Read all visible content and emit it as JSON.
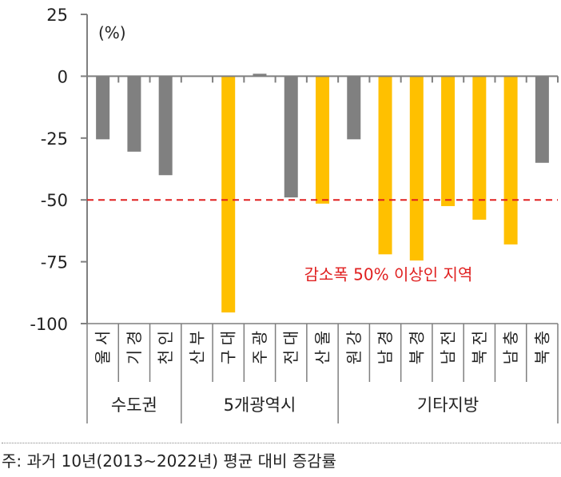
{
  "chart_data": {
    "type": "bar",
    "unit_label": "(%)",
    "ylim": [
      -100,
      25
    ],
    "yticks": [
      25,
      0,
      -25,
      -50,
      -75,
      -100
    ],
    "ytick_labels": [
      "25",
      "0",
      "-25",
      "-50",
      "-75",
      "-100"
    ],
    "grid": false,
    "categories": [
      "서울",
      "경기",
      "인천",
      "부산",
      "대구",
      "광주",
      "대전",
      "울산",
      "강원",
      "경남",
      "경북",
      "전남",
      "전북",
      "충남",
      "충북"
    ],
    "values": [
      -25.5,
      -30.5,
      -40,
      0,
      -95.5,
      1,
      -49,
      -51.5,
      -25.5,
      -72,
      -74.5,
      -52.5,
      -58,
      -68,
      -35
    ],
    "highlight": [
      false,
      false,
      false,
      false,
      true,
      false,
      false,
      true,
      false,
      true,
      true,
      true,
      true,
      true,
      false
    ],
    "colors": {
      "normal": "#808080",
      "highlight": "#FFC000",
      "reference": "#E02020"
    },
    "groups": [
      {
        "label": "수도권",
        "start": 0,
        "end": 2
      },
      {
        "label": "5개광역시",
        "start": 3,
        "end": 7
      },
      {
        "label": "기타지방",
        "start": 8,
        "end": 14
      }
    ],
    "reference_line": {
      "value": -50,
      "label": "감소폭 50% 이상인 지역"
    }
  },
  "footnote": "주: 과거 10년(2013~2022년) 평균 대비 증감률"
}
